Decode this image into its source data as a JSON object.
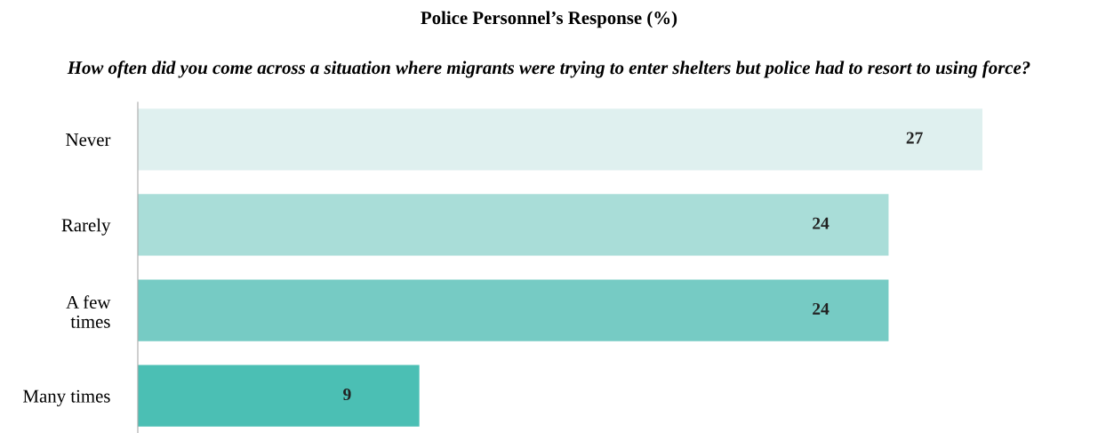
{
  "chart_data": {
    "type": "bar",
    "orientation": "horizontal",
    "title": "Police Personnel’s Response (%)",
    "subtitle": "How often did you come across a situation where migrants were trying to enter shelters but police had to resort to using force?",
    "categories": [
      "Never",
      "Rarely",
      "A few\ntimes",
      "Many times"
    ],
    "values": [
      27,
      24,
      24,
      9
    ],
    "colors": [
      "#dff0ef",
      "#a9ddd8",
      "#76cbc4",
      "#4bbfb4"
    ],
    "data_labels": true,
    "grid": false,
    "legend": false,
    "tick_labels": "y"
  }
}
